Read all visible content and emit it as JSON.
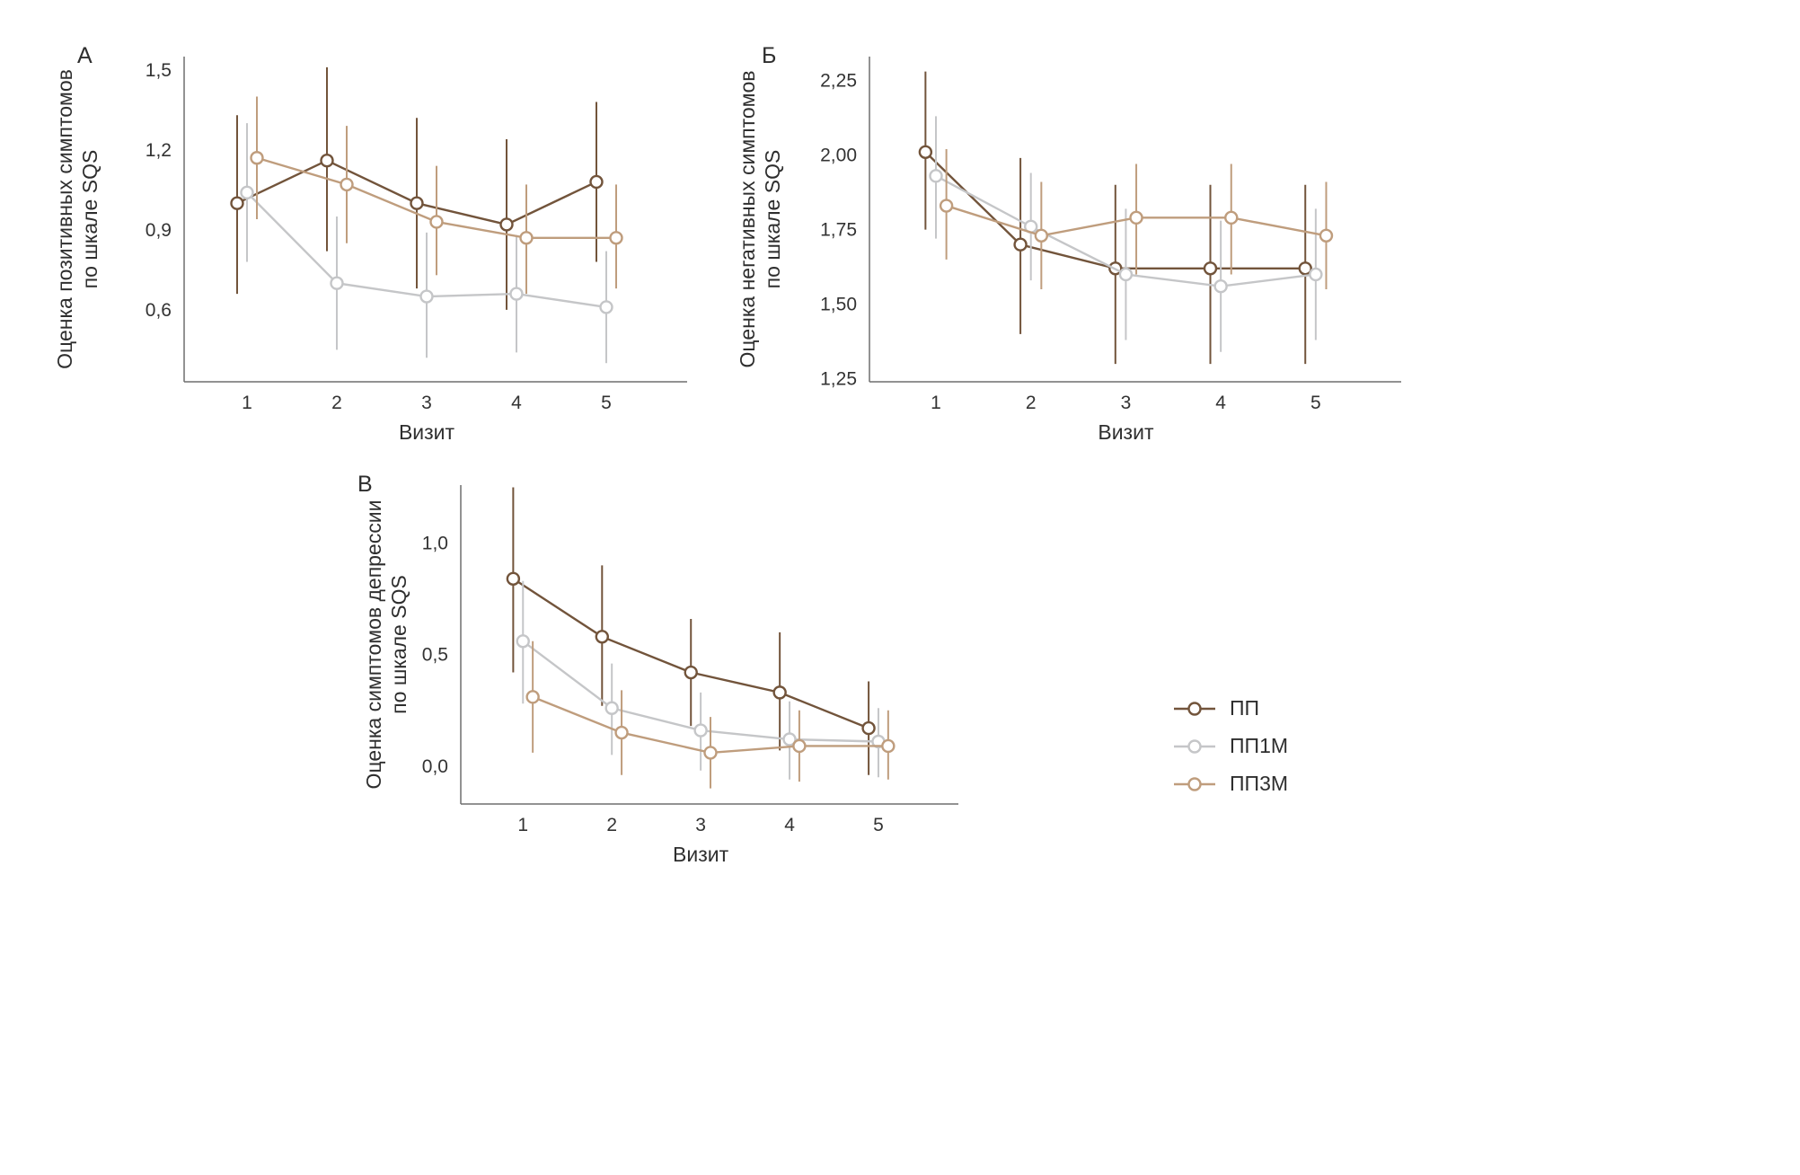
{
  "figure": {
    "background": "#ffffff",
    "axis_color": "#6e6e6e",
    "text_color": "#2e2e2e",
    "legend": {
      "position": "bottom-right",
      "items": [
        {
          "label": "ПП",
          "color": "#72543b",
          "marker": "open-circle"
        },
        {
          "label": "ПП1М",
          "color": "#c5c6c8",
          "marker": "open-circle"
        },
        {
          "label": "ПП3М",
          "color": "#bf9d7d",
          "marker": "open-circle"
        }
      ]
    }
  },
  "chart_data": [
    {
      "id": "A",
      "panel_label": "А",
      "type": "line",
      "error_bars": true,
      "grid": false,
      "xlabel": "Визит",
      "ylabel": "Оценка позитивных симптомов по шкале SQS",
      "ylabel_lines": [
        "Оценка позитивных симптомов",
        "по шкале SQS"
      ],
      "x": [
        1,
        2,
        3,
        4,
        5
      ],
      "x_tick_labels": [
        "1",
        "2",
        "3",
        "4",
        "5"
      ],
      "xlim": [
        0.3,
        5.9
      ],
      "ylim": [
        0.33,
        1.55
      ],
      "yticks": [
        0.6,
        0.9,
        1.2,
        1.5
      ],
      "ytick_labels": [
        "0,6",
        "0,9",
        "1,2",
        "1,5"
      ],
      "series": [
        {
          "name": "ПП",
          "color": "#72543b",
          "dodge": -0.11,
          "values": [
            1.0,
            1.16,
            1.0,
            0.92,
            1.08
          ],
          "lower": [
            0.66,
            0.82,
            0.68,
            0.6,
            0.78
          ],
          "upper": [
            1.33,
            1.51,
            1.32,
            1.24,
            1.38
          ]
        },
        {
          "name": "ПП1М",
          "color": "#c5c6c8",
          "dodge": 0,
          "values": [
            1.04,
            0.7,
            0.65,
            0.66,
            0.61
          ],
          "lower": [
            0.78,
            0.45,
            0.42,
            0.44,
            0.4
          ],
          "upper": [
            1.3,
            0.95,
            0.89,
            0.88,
            0.82
          ]
        },
        {
          "name": "ПП3М",
          "color": "#bf9d7d",
          "dodge": 0.11,
          "values": [
            1.17,
            1.07,
            0.93,
            0.87,
            0.87
          ],
          "lower": [
            0.94,
            0.85,
            0.73,
            0.66,
            0.68
          ],
          "upper": [
            1.4,
            1.29,
            1.14,
            1.07,
            1.07
          ]
        }
      ]
    },
    {
      "id": "B",
      "panel_label": "Б",
      "type": "line",
      "error_bars": true,
      "grid": false,
      "xlabel": "Визит",
      "ylabel": "Оценка негативных симптомов по шкале SQS",
      "ylabel_lines": [
        "Оценка негативных симптомов",
        "по шкале SQS"
      ],
      "x": [
        1,
        2,
        3,
        4,
        5
      ],
      "x_tick_labels": [
        "1",
        "2",
        "3",
        "4",
        "5"
      ],
      "xlim": [
        0.3,
        5.9
      ],
      "ylim": [
        1.24,
        2.33
      ],
      "yticks": [
        1.25,
        1.5,
        1.75,
        2.0,
        2.25
      ],
      "ytick_labels": [
        "1,25",
        "1,50",
        "1,75",
        "2,00",
        "2,25"
      ],
      "series": [
        {
          "name": "ПП",
          "color": "#72543b",
          "dodge": -0.11,
          "values": [
            2.01,
            1.7,
            1.62,
            1.62,
            1.62
          ],
          "lower": [
            1.75,
            1.4,
            1.3,
            1.3,
            1.3
          ],
          "upper": [
            2.28,
            1.99,
            1.9,
            1.9,
            1.9
          ]
        },
        {
          "name": "ПП1М",
          "color": "#c5c6c8",
          "dodge": 0,
          "values": [
            1.93,
            1.76,
            1.6,
            1.56,
            1.6
          ],
          "lower": [
            1.72,
            1.58,
            1.38,
            1.34,
            1.38
          ],
          "upper": [
            2.13,
            1.94,
            1.82,
            1.78,
            1.82
          ]
        },
        {
          "name": "ПП3М",
          "color": "#bf9d7d",
          "dodge": 0.11,
          "values": [
            1.83,
            1.73,
            1.79,
            1.79,
            1.73
          ],
          "lower": [
            1.65,
            1.55,
            1.6,
            1.6,
            1.55
          ],
          "upper": [
            2.02,
            1.91,
            1.97,
            1.97,
            1.91
          ]
        }
      ]
    },
    {
      "id": "V",
      "panel_label": "В",
      "type": "line",
      "error_bars": true,
      "grid": false,
      "xlabel": "Визит",
      "ylabel": "Оценка симптомов депрессии по шкале SQS",
      "ylabel_lines": [
        "Оценка симптомов депрессии",
        "по шкале SQS"
      ],
      "x": [
        1,
        2,
        3,
        4,
        5
      ],
      "x_tick_labels": [
        "1",
        "2",
        "3",
        "4",
        "5"
      ],
      "xlim": [
        0.3,
        5.9
      ],
      "ylim": [
        -0.17,
        1.26
      ],
      "yticks": [
        0.0,
        0.5,
        1.0
      ],
      "ytick_labels": [
        "0,0",
        "0,5",
        "1,0"
      ],
      "series": [
        {
          "name": "ПП",
          "color": "#72543b",
          "dodge": -0.11,
          "values": [
            0.84,
            0.58,
            0.42,
            0.33,
            0.17
          ],
          "lower": [
            0.42,
            0.27,
            0.18,
            0.07,
            -0.04
          ],
          "upper": [
            1.25,
            0.9,
            0.66,
            0.6,
            0.38
          ]
        },
        {
          "name": "ПП1М",
          "color": "#c5c6c8",
          "dodge": 0,
          "values": [
            0.56,
            0.26,
            0.16,
            0.12,
            0.11
          ],
          "lower": [
            0.28,
            0.05,
            -0.02,
            -0.06,
            -0.05
          ],
          "upper": [
            0.83,
            0.46,
            0.33,
            0.29,
            0.26
          ]
        },
        {
          "name": "ПП3М",
          "color": "#bf9d7d",
          "dodge": 0.11,
          "values": [
            0.31,
            0.15,
            0.06,
            0.09,
            0.09
          ],
          "lower": [
            0.06,
            -0.04,
            -0.1,
            -0.07,
            -0.06
          ],
          "upper": [
            0.56,
            0.34,
            0.22,
            0.25,
            0.25
          ]
        }
      ]
    }
  ]
}
